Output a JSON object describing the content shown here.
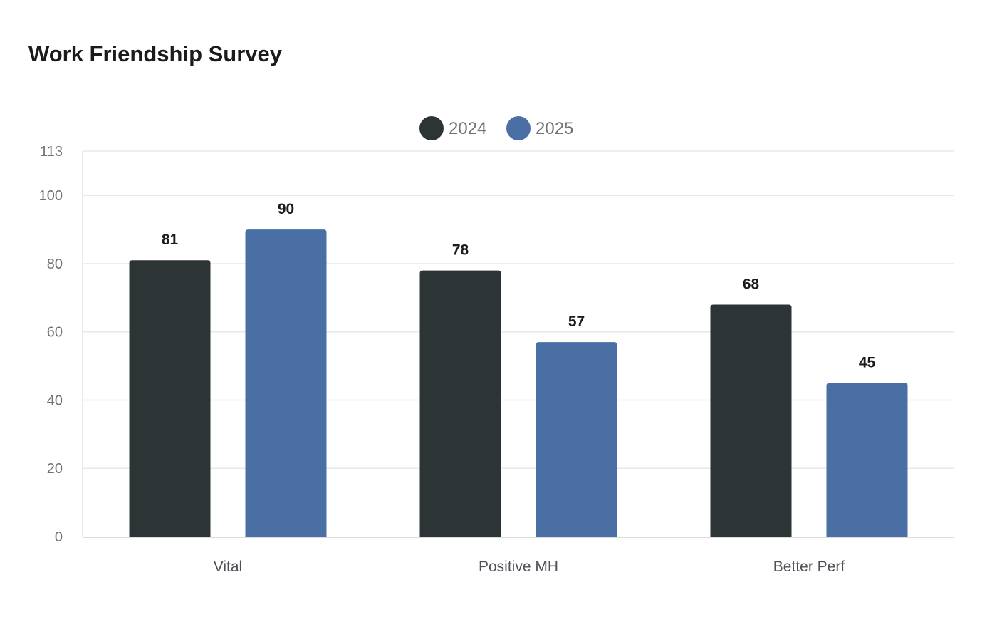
{
  "chart_data": {
    "type": "bar",
    "title": "Work Friendship Survey",
    "categories": [
      "Vital",
      "Positive MH",
      "Better Perf"
    ],
    "series": [
      {
        "name": "2024",
        "values": [
          81,
          78,
          68
        ],
        "color": "#2d3436"
      },
      {
        "name": "2025",
        "values": [
          90,
          57,
          45
        ],
        "color": "#4a6fa5"
      }
    ],
    "ylim": [
      0,
      113
    ],
    "yticks": [
      0,
      20,
      40,
      60,
      80,
      100,
      113
    ],
    "grid": true,
    "legend": "top-center",
    "value_labels": true
  }
}
